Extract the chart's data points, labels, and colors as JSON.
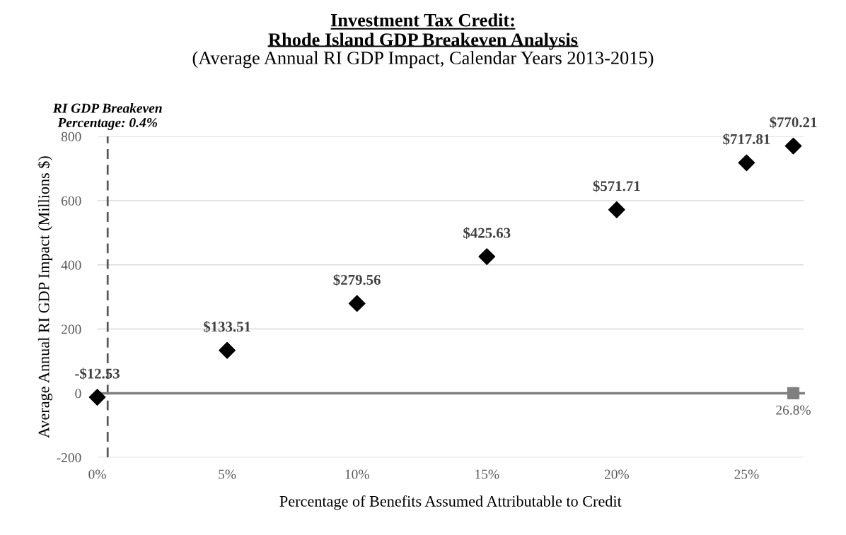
{
  "chart_data": {
    "type": "scatter",
    "title": "Investment Tax Credit:\nRhode Island GDP Breakeven Analysis",
    "subtitle": "(Average Annual RI GDP Impact, Calendar Years 2013-2015)",
    "xlabel": "Percentage of Benefits Assumed Attributable to Credit",
    "ylabel": "Average Annual RI GDP Impact (Millions $)",
    "series": [
      {
        "color": "#000000",
        "marker": "diamond",
        "x": [
          0,
          5,
          10,
          15,
          20,
          25,
          26.8
        ],
        "values": [
          -12.53,
          133.51,
          279.56,
          425.63,
          571.71,
          717.81,
          770.21
        ],
        "value_labels": [
          "-$12.53",
          "$133.51",
          "$279.56",
          "$425.63",
          "$571.71",
          "$717.81",
          "$770.21"
        ]
      },
      {
        "color": "#808080",
        "marker": "square",
        "x": [
          26.8
        ],
        "values": [
          0
        ]
      }
    ],
    "xlim": [
      0,
      27.2
    ],
    "xticks": [
      {
        "value": 0,
        "label": "0%"
      },
      {
        "value": 5,
        "label": "5%"
      },
      {
        "value": 10,
        "label": "10%"
      },
      {
        "value": 15,
        "label": "15%"
      },
      {
        "value": 20,
        "label": "20%"
      },
      {
        "value": 25,
        "label": "25%"
      }
    ],
    "ylim": [
      -200,
      800
    ],
    "yticks": [
      -200,
      0,
      200,
      400,
      600,
      800
    ],
    "grid": "y",
    "ref_lines": [
      {
        "axis": "x",
        "value": 0.4,
        "label": "RI GDP Breakeven\nPercentage: 0.4%",
        "color": "#595959",
        "line_style": "dashed"
      }
    ],
    "annotations": [
      {
        "text": "26.8%",
        "x": 26.8,
        "y": 0
      }
    ]
  }
}
